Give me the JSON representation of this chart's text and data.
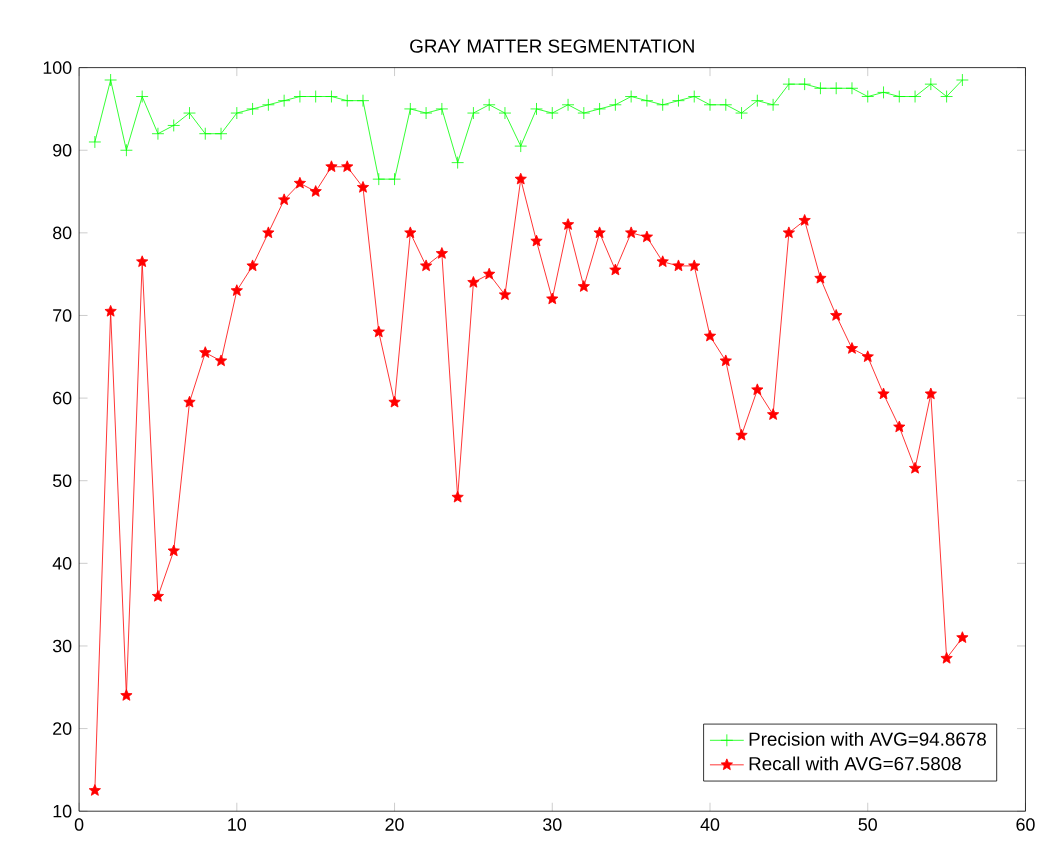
{
  "chart_data": {
    "type": "line",
    "title": "GRAY MATTER SEGMENTATION",
    "x": [
      1,
      2,
      3,
      4,
      5,
      6,
      7,
      8,
      9,
      10,
      11,
      12,
      13,
      14,
      15,
      16,
      17,
      18,
      19,
      20,
      21,
      22,
      23,
      24,
      25,
      26,
      27,
      28,
      29,
      30,
      31,
      32,
      33,
      34,
      35,
      36,
      37,
      38,
      39,
      40,
      41,
      42,
      43,
      44,
      45,
      46,
      47,
      48,
      49,
      50,
      51,
      52,
      53,
      54,
      55,
      56
    ],
    "series": [
      {
        "name": "Precision with AVG=94.8678",
        "color": "#00ff00",
        "marker": "cross",
        "values": [
          91,
          98.5,
          90,
          96.5,
          92,
          93,
          94.5,
          92,
          92,
          94.5,
          95,
          95.5,
          96,
          96.5,
          96.5,
          96.5,
          96,
          96,
          86.5,
          86.5,
          95,
          94.5,
          95,
          88.5,
          94.5,
          95.5,
          94.5,
          90.5,
          95,
          94.5,
          95.5,
          94.5,
          95,
          95.5,
          96.5,
          96,
          95.5,
          96,
          96.5,
          95.5,
          95.5,
          94.5,
          96,
          95.5,
          98,
          98,
          97.5,
          97.5,
          97.5,
          96.5,
          97,
          96.5,
          96.5,
          98,
          96.5,
          98.5
        ]
      },
      {
        "name": "Recall with AVG=67.5808",
        "color": "#ff0000",
        "marker": "star",
        "values": [
          12.5,
          70.5,
          24,
          76.5,
          36,
          41.5,
          59.5,
          65.5,
          64.5,
          73,
          76,
          80,
          84,
          86,
          85,
          88,
          88,
          85.5,
          68,
          59.5,
          80,
          76,
          77.5,
          48,
          74,
          75,
          72.5,
          86.5,
          79,
          72,
          81,
          73.5,
          80,
          75.5,
          80,
          79.5,
          76.5,
          76,
          76,
          67.5,
          64.5,
          55.5,
          61,
          58,
          80,
          81.5,
          74.5,
          70,
          66,
          65,
          60.5,
          56.5,
          51.5,
          60.5,
          28.5,
          31
        ]
      }
    ],
    "xlim": [
      0,
      60
    ],
    "xticks": [
      0,
      10,
      20,
      30,
      40,
      50,
      60
    ],
    "ylim": [
      10,
      100
    ],
    "yticks": [
      10,
      20,
      30,
      40,
      50,
      60,
      70,
      80,
      90,
      100
    ],
    "grid": false,
    "legend": "bottom right",
    "line_style": "solid"
  }
}
